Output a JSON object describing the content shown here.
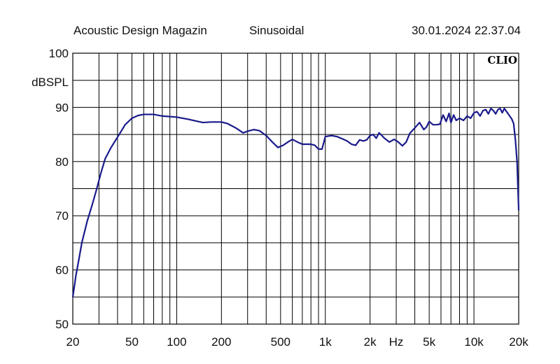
{
  "header": {
    "source": "Acoustic Design Magazin",
    "mode": "Sinusoidal",
    "timestamp": "30.01.2024 22.37.04"
  },
  "chart_data": {
    "type": "line",
    "title": "",
    "xlabel": "Hz",
    "ylabel": "dBSPL",
    "xscale": "log",
    "xlim": [
      20,
      20000
    ],
    "ylim": [
      50,
      100
    ],
    "grid": true,
    "brand": "CLIO",
    "line_color": "#1a1a8c",
    "y_ticks": [
      {
        "value": 100,
        "label": "100"
      },
      {
        "value": 90,
        "label": "90"
      },
      {
        "value": 80,
        "label": "80"
      },
      {
        "value": 70,
        "label": "70"
      },
      {
        "value": 60,
        "label": "60"
      },
      {
        "value": 50,
        "label": "50"
      }
    ],
    "x_ticks": [
      {
        "value": 20,
        "label": "20"
      },
      {
        "value": 50,
        "label": "50"
      },
      {
        "value": 100,
        "label": "100"
      },
      {
        "value": 200,
        "label": "200"
      },
      {
        "value": 500,
        "label": "500"
      },
      {
        "value": 1000,
        "label": "1k"
      },
      {
        "value": 2000,
        "label": "2k"
      },
      {
        "value": 5000,
        "label": "5k"
      },
      {
        "value": 10000,
        "label": "10k"
      },
      {
        "value": 20000,
        "label": "20k"
      }
    ],
    "series": [
      {
        "x": [
          20,
          21,
          22,
          23,
          25,
          27,
          29,
          31,
          33,
          36,
          40,
          45,
          50,
          55,
          60,
          70,
          80,
          100,
          120,
          150,
          170,
          200,
          220,
          250,
          280,
          300,
          330,
          360,
          400,
          440,
          480,
          520,
          560,
          600,
          650,
          700,
          750,
          800,
          850,
          900,
          950,
          1000,
          1100,
          1200,
          1300,
          1400,
          1500,
          1600,
          1700,
          1800,
          1900,
          2000,
          2100,
          2200,
          2300,
          2400,
          2500,
          2700,
          2900,
          3100,
          3300,
          3500,
          3700,
          4000,
          4300,
          4600,
          4800,
          5000,
          5300,
          5600,
          5900,
          6200,
          6500,
          6800,
          7000,
          7300,
          7600,
          8000,
          8500,
          9000,
          9500,
          10000,
          10500,
          11000,
          11500,
          12000,
          12500,
          13000,
          13500,
          14000,
          14500,
          15000,
          15500,
          16000,
          17000,
          18000,
          18500,
          19000,
          19500,
          20000
        ],
        "y": [
          55,
          59,
          62,
          65,
          69,
          72,
          75,
          78,
          80.5,
          82.5,
          84.5,
          86.8,
          88,
          88.5,
          88.7,
          88.7,
          88.4,
          88.2,
          87.8,
          87.2,
          87.3,
          87.3,
          87,
          86.2,
          85.3,
          85.6,
          85.9,
          85.7,
          84.8,
          83.6,
          82.6,
          83.0,
          83.6,
          84.1,
          83.6,
          83.2,
          83.2,
          83.2,
          83.0,
          82.3,
          82.3,
          84.6,
          84.8,
          84.6,
          84.2,
          83.8,
          83.2,
          83.0,
          84.0,
          83.8,
          84.0,
          84.8,
          85.0,
          84.3,
          85.3,
          84.8,
          84.3,
          83.6,
          84.1,
          83.6,
          82.9,
          83.6,
          85.2,
          86.2,
          87.2,
          85.9,
          86.4,
          87.4,
          86.8,
          86.8,
          86.9,
          88.6,
          87.4,
          88.9,
          87.2,
          88.6,
          87.6,
          88.0,
          87.6,
          88.4,
          88.0,
          89.0,
          89.2,
          88.4,
          89.4,
          89.6,
          88.8,
          89.8,
          89.4,
          88.8,
          89.6,
          89.8,
          89.0,
          89.8,
          88.8,
          87.8,
          87.0,
          84.0,
          80.0,
          71.0
        ]
      }
    ]
  }
}
